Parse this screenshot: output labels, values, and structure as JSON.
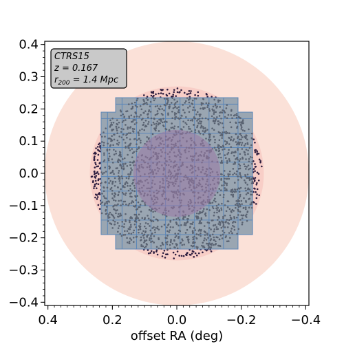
{
  "chart_data": {
    "type": "scatter",
    "xlabel": "offset RA (deg)",
    "ylabel": "",
    "xlim": [
      0.41,
      -0.41
    ],
    "ylim": [
      -0.41,
      0.41
    ],
    "x_ticks": [
      0.4,
      0.2,
      0.0,
      -0.2,
      -0.4
    ],
    "x_tick_labels": [
      "0.4",
      "0.2",
      "0.0",
      "−0.2",
      "−0.4"
    ],
    "y_ticks": [
      0.4,
      0.3,
      0.2,
      0.1,
      0.0,
      -0.1,
      -0.2,
      -0.3,
      -0.4
    ],
    "y_tick_labels": [
      "0.4",
      "0.3",
      "0.2",
      "0.1",
      "0.0",
      "−0.1",
      "−0.2",
      "−0.3",
      "−0.4"
    ],
    "grid": false,
    "annotation": {
      "name": "CTRS15",
      "redshift": "z = 0.167",
      "radius_prefix": "r",
      "radius_sub": "200",
      "radius_value": " = 1.4 Mpc",
      "placement": "top-left"
    },
    "circles": [
      {
        "name": "outer",
        "radius_deg": 0.41,
        "color": "#fbe1d8"
      },
      {
        "name": "r200",
        "radius_deg": 0.27,
        "color": "#f6c6c0"
      },
      {
        "name": "inner",
        "radius_deg": 0.135,
        "color": "#9b79a6"
      }
    ],
    "footprint": {
      "color": "#9aa6b2",
      "edge_color": "#5a86b8",
      "tile_size_deg": 0.045,
      "outline": [
        [
          0.19,
          0.235
        ],
        [
          -0.19,
          0.235
        ],
        [
          -0.19,
          0.19
        ],
        [
          -0.235,
          0.19
        ],
        [
          -0.235,
          -0.19
        ],
        [
          -0.19,
          -0.19
        ],
        [
          -0.19,
          -0.235
        ],
        [
          0.19,
          -0.235
        ],
        [
          0.19,
          -0.19
        ],
        [
          0.235,
          -0.19
        ],
        [
          0.235,
          0.19
        ],
        [
          0.19,
          0.19
        ]
      ]
    },
    "series": [
      {
        "point_color_outside": "#2d1d3f",
        "point_color_inside": "#5a6372",
        "count": 2200,
        "max_radius_deg": 0.265
      }
    ]
  }
}
